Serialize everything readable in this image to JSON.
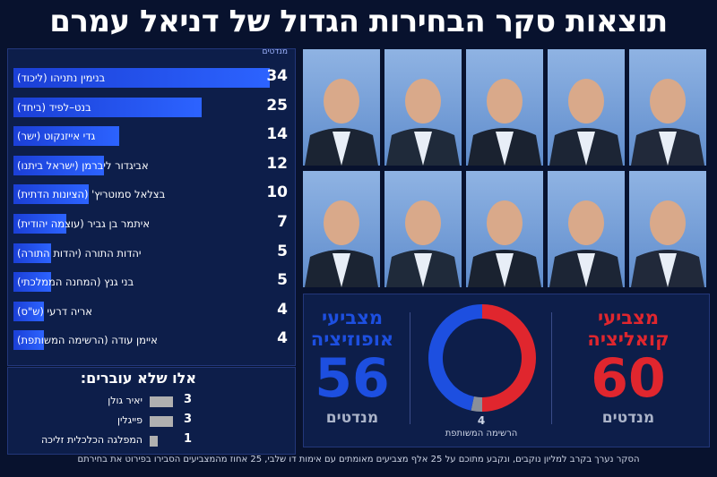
{
  "title": "תוצאות סקר הבחירות הגדול של דניאל עמרם",
  "chart_data": {
    "type": "bar",
    "unit_label": "מנדטים",
    "categories": [
      "בנימין נתניהו (ליכוד)",
      "בנט–לפיד (ביחד)",
      "גדי אייזנקוט (ישר)",
      "אביגדור ליברמן (ישראל ביתנו)",
      "בצלאל סמוטריץ' (הציונות הדתית)",
      "איתמר בן גביר (עוצמה יהודית)",
      "יהדות התורה (יהדות התורה)",
      "בני גנץ (המחנה הממלכתי)",
      "אריה דרעי (ש\"ס)",
      "איימן עודה (הרשימה המשותפת)"
    ],
    "values": [
      34,
      25,
      14,
      12,
      10,
      7,
      5,
      5,
      4,
      4
    ],
    "bar_color": "#2c63ff"
  },
  "not_passing": {
    "title": "אלו שלא עוברים:",
    "items": [
      {
        "name": "יאיר גולן",
        "value": 3
      },
      {
        "name": "פייגלין",
        "value": 3
      },
      {
        "name": "המפלגה הכלכלית זליכה",
        "value": 1
      }
    ]
  },
  "result": {
    "coalition_label": "מצביעי קואליציה",
    "coalition_value": 60,
    "coalition_color": "#e0262e",
    "opposition_label": "מצביעי אופוזיציה",
    "opposition_value": 56,
    "opposition_color": "#1d4fe0",
    "other_value": 4,
    "other_label": "הרשימה המשותפת",
    "other_color": "#8a8f99",
    "unit": "מנדטים"
  },
  "footer": "הסקר נערך בקרב למליון נוקבים, ונקבע מתוכם על 25 אלף מצביעים מאומתים עם אימות דו שלבי, 25 אחוז מהמצביעים הסבירו בפירוט את בחירתם"
}
